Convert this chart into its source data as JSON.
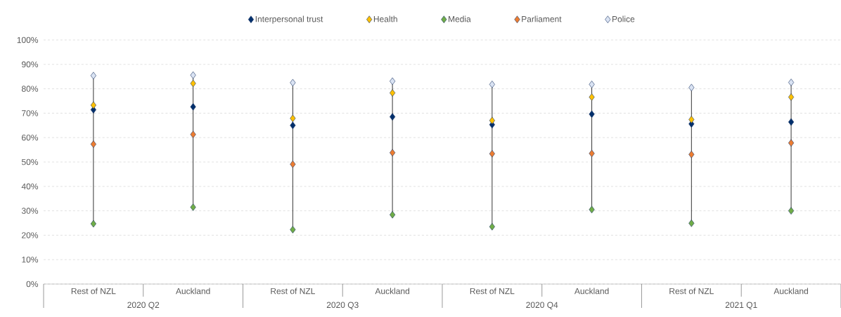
{
  "chart_data": {
    "type": "scatter",
    "categories": [
      "Rest of NZL",
      "Auckland",
      "Rest of NZL",
      "Auckland",
      "Rest of NZL",
      "Auckland",
      "Rest of NZL",
      "Auckland"
    ],
    "series": [
      {
        "name": "Interpersonal trust",
        "color": "#002f6c",
        "values": [
          71.4,
          72.6,
          65.0,
          68.5,
          65.3,
          69.6,
          65.6,
          66.4
        ]
      },
      {
        "name": "Health",
        "color": "#ffc000",
        "values": [
          73.3,
          82.2,
          67.9,
          78.3,
          67.0,
          76.6,
          67.4,
          76.6
        ]
      },
      {
        "name": "Media",
        "color": "#70ad47",
        "values": [
          24.7,
          31.5,
          22.3,
          28.4,
          23.5,
          30.5,
          24.9,
          30.0
        ]
      },
      {
        "name": "Parliament",
        "color": "#ed7d31",
        "values": [
          57.3,
          61.3,
          49.1,
          53.8,
          53.4,
          53.5,
          53.1,
          57.8
        ]
      },
      {
        "name": "Police",
        "color": "#dae3f3",
        "values": [
          85.4,
          85.6,
          82.5,
          83.1,
          81.8,
          81.8,
          80.5,
          82.6
        ]
      }
    ],
    "ylim": [
      0,
      100
    ],
    "yticks": [
      {
        "value": 0,
        "label": "0%"
      },
      {
        "value": 10,
        "label": "10%"
      },
      {
        "value": 20,
        "label": "20%"
      },
      {
        "value": 30,
        "label": "30%"
      },
      {
        "value": 40,
        "label": "40%"
      },
      {
        "value": 50,
        "label": "50%"
      },
      {
        "value": 60,
        "label": "60%"
      },
      {
        "value": 70,
        "label": "70%"
      },
      {
        "value": 80,
        "label": "80%"
      },
      {
        "value": 90,
        "label": "90%"
      },
      {
        "value": 100,
        "label": "100%"
      }
    ],
    "annotations": [
      "2020 Q2",
      "2020 Q3",
      "2020 Q4",
      "2021 Q1"
    ],
    "grid": "y",
    "legend": "top",
    "marker": "diamond"
  }
}
